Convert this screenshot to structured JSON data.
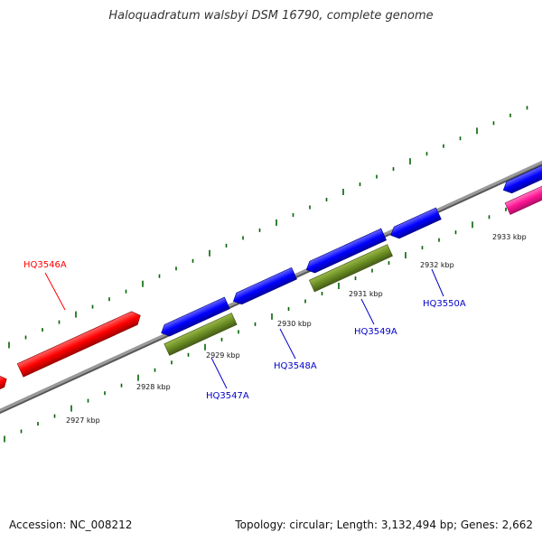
{
  "title": "Haloquadratum walsbyi DSM 16790, complete genome",
  "footer": {
    "accession": "Accession: NC_008212",
    "topology": "Topology: circular; Length: 3,132,494 bp; Genes: 2,662"
  },
  "scale_labels": [
    "2927 kbp",
    "2928 kbp",
    "2929 kbp",
    "2930 kbp",
    "2931 kbp",
    "2932 kbp",
    "2933 kbp"
  ],
  "genes": [
    {
      "name": "HQ3546A",
      "strand": "forward",
      "color": "#ff0000"
    },
    {
      "name": "HQ3547A",
      "strand": "reverse",
      "color": "#0000ff"
    },
    {
      "name": "HQ3548A",
      "strand": "reverse",
      "color": "#0000ff"
    },
    {
      "name": "HQ3549A",
      "strand": "reverse",
      "color": "#0000ff"
    },
    {
      "name": "HQ3550A",
      "strand": "reverse",
      "color": "#0000ff"
    }
  ],
  "colors": {
    "red_gene": "#ff0000",
    "blue_gene": "#0000ff",
    "green_gene": "#6b8e23",
    "magenta_gene": "#ff1493",
    "backbone": "#808080",
    "tick": "#006400"
  }
}
